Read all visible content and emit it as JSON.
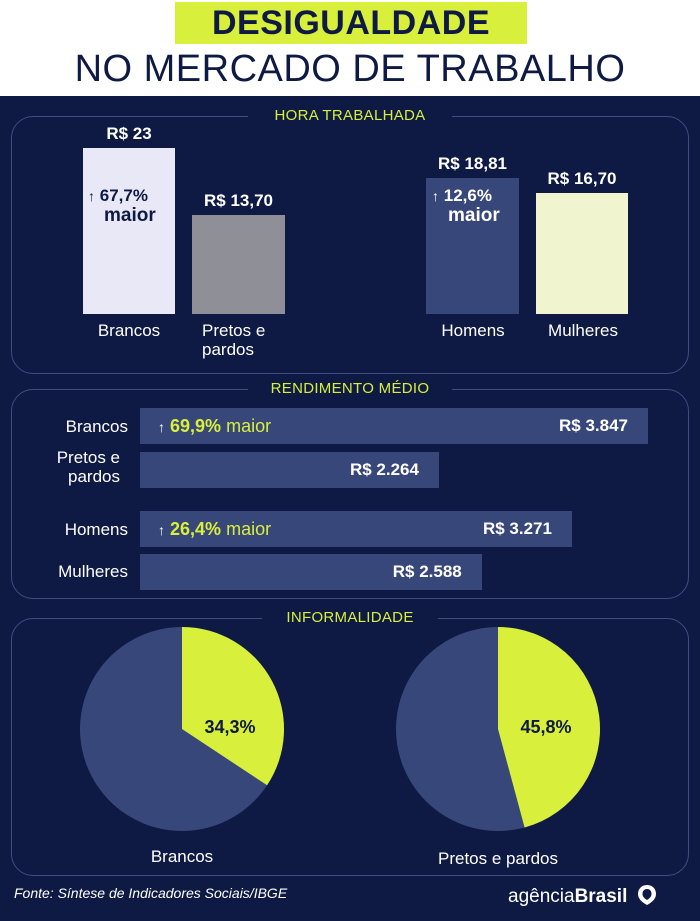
{
  "header": {
    "title_line1": "DESIGUALDADE",
    "title_line2": "NO MERCADO DE TRABALHO"
  },
  "sections": {
    "hora": "HORA TRABALHADA",
    "rendimento": "RENDIMENTO MÉDIO",
    "informalidade": "INFORMALIDADE"
  },
  "hora": {
    "bars": [
      {
        "label_line1": "Brancos",
        "label_line2": "",
        "value_text": "R$ 23",
        "value": 23,
        "color": "#e8e8f6"
      },
      {
        "label_line1": "Pretos e",
        "label_line2": "pardos",
        "value_text": "R$ 13,70",
        "value": 13.7,
        "color": "#8f8f97"
      },
      {
        "label_line1": "Homens",
        "label_line2": "",
        "value_text": "R$ 18,81",
        "value": 18.81,
        "color": "#384779"
      },
      {
        "label_line1": "Mulheres",
        "label_line2": "",
        "value_text": "R$ 16,70",
        "value": 16.7,
        "color": "#f1f5cf"
      }
    ],
    "note_race_pct": "67,7%",
    "note_race_word": "maior",
    "note_gender_pct": "12,6%",
    "note_gender_word": "maior"
  },
  "rendimento": {
    "rows": [
      {
        "label_line1": "Brancos",
        "label_line2": "",
        "value_text": "R$ 3.847",
        "value": 3847
      },
      {
        "label_line1": "Pretos e",
        "label_line2": "pardos",
        "value_text": "R$ 2.264",
        "value": 2264
      },
      {
        "label_line1": "Homens",
        "label_line2": "",
        "value_text": "R$ 3.271",
        "value": 3271
      },
      {
        "label_line1": "Mulheres",
        "label_line2": "",
        "value_text": "R$ 2.588",
        "value": 2588
      }
    ],
    "note_race_pct": "69,9%",
    "note_race_word": "maior",
    "note_gender_pct": "26,4%",
    "note_gender_word": "maior"
  },
  "informalidade": {
    "pies": [
      {
        "label": "Brancos",
        "value_text": "34,3%",
        "value": 34.3
      },
      {
        "label": "Pretos e pardos",
        "value_text": "45,8%",
        "value": 45.8
      }
    ]
  },
  "footer": {
    "source": "Fonte:  Síntese de Indicadores Sociais/IBGE",
    "logo_light": "agência",
    "logo_bold": "Brasil"
  },
  "colors": {
    "background": "#0e1a44",
    "accent": "#d8ef3c",
    "bar_blue": "#384779",
    "white": "#ffffff"
  },
  "chart_data": [
    {
      "type": "bar",
      "title": "HORA TRABALHADA",
      "categories": [
        "Brancos",
        "Pretos e pardos",
        "Homens",
        "Mulheres"
      ],
      "values": [
        23,
        13.7,
        18.81,
        16.7
      ],
      "annotations": [
        "67,7% maior",
        "12,6% maior"
      ]
    },
    {
      "type": "bar",
      "orientation": "horizontal",
      "title": "RENDIMENTO MÉDIO",
      "categories": [
        "Brancos",
        "Pretos e pardos",
        "Homens",
        "Mulheres"
      ],
      "values": [
        3847,
        2264,
        3271,
        2588
      ],
      "annotations": [
        "69,9% maior",
        "26,4% maior"
      ]
    },
    {
      "type": "pie",
      "title": "INFORMALIDADE",
      "categories": [
        "Brancos",
        "Pretos e pardos"
      ],
      "values": [
        34.3,
        45.8
      ]
    }
  ]
}
